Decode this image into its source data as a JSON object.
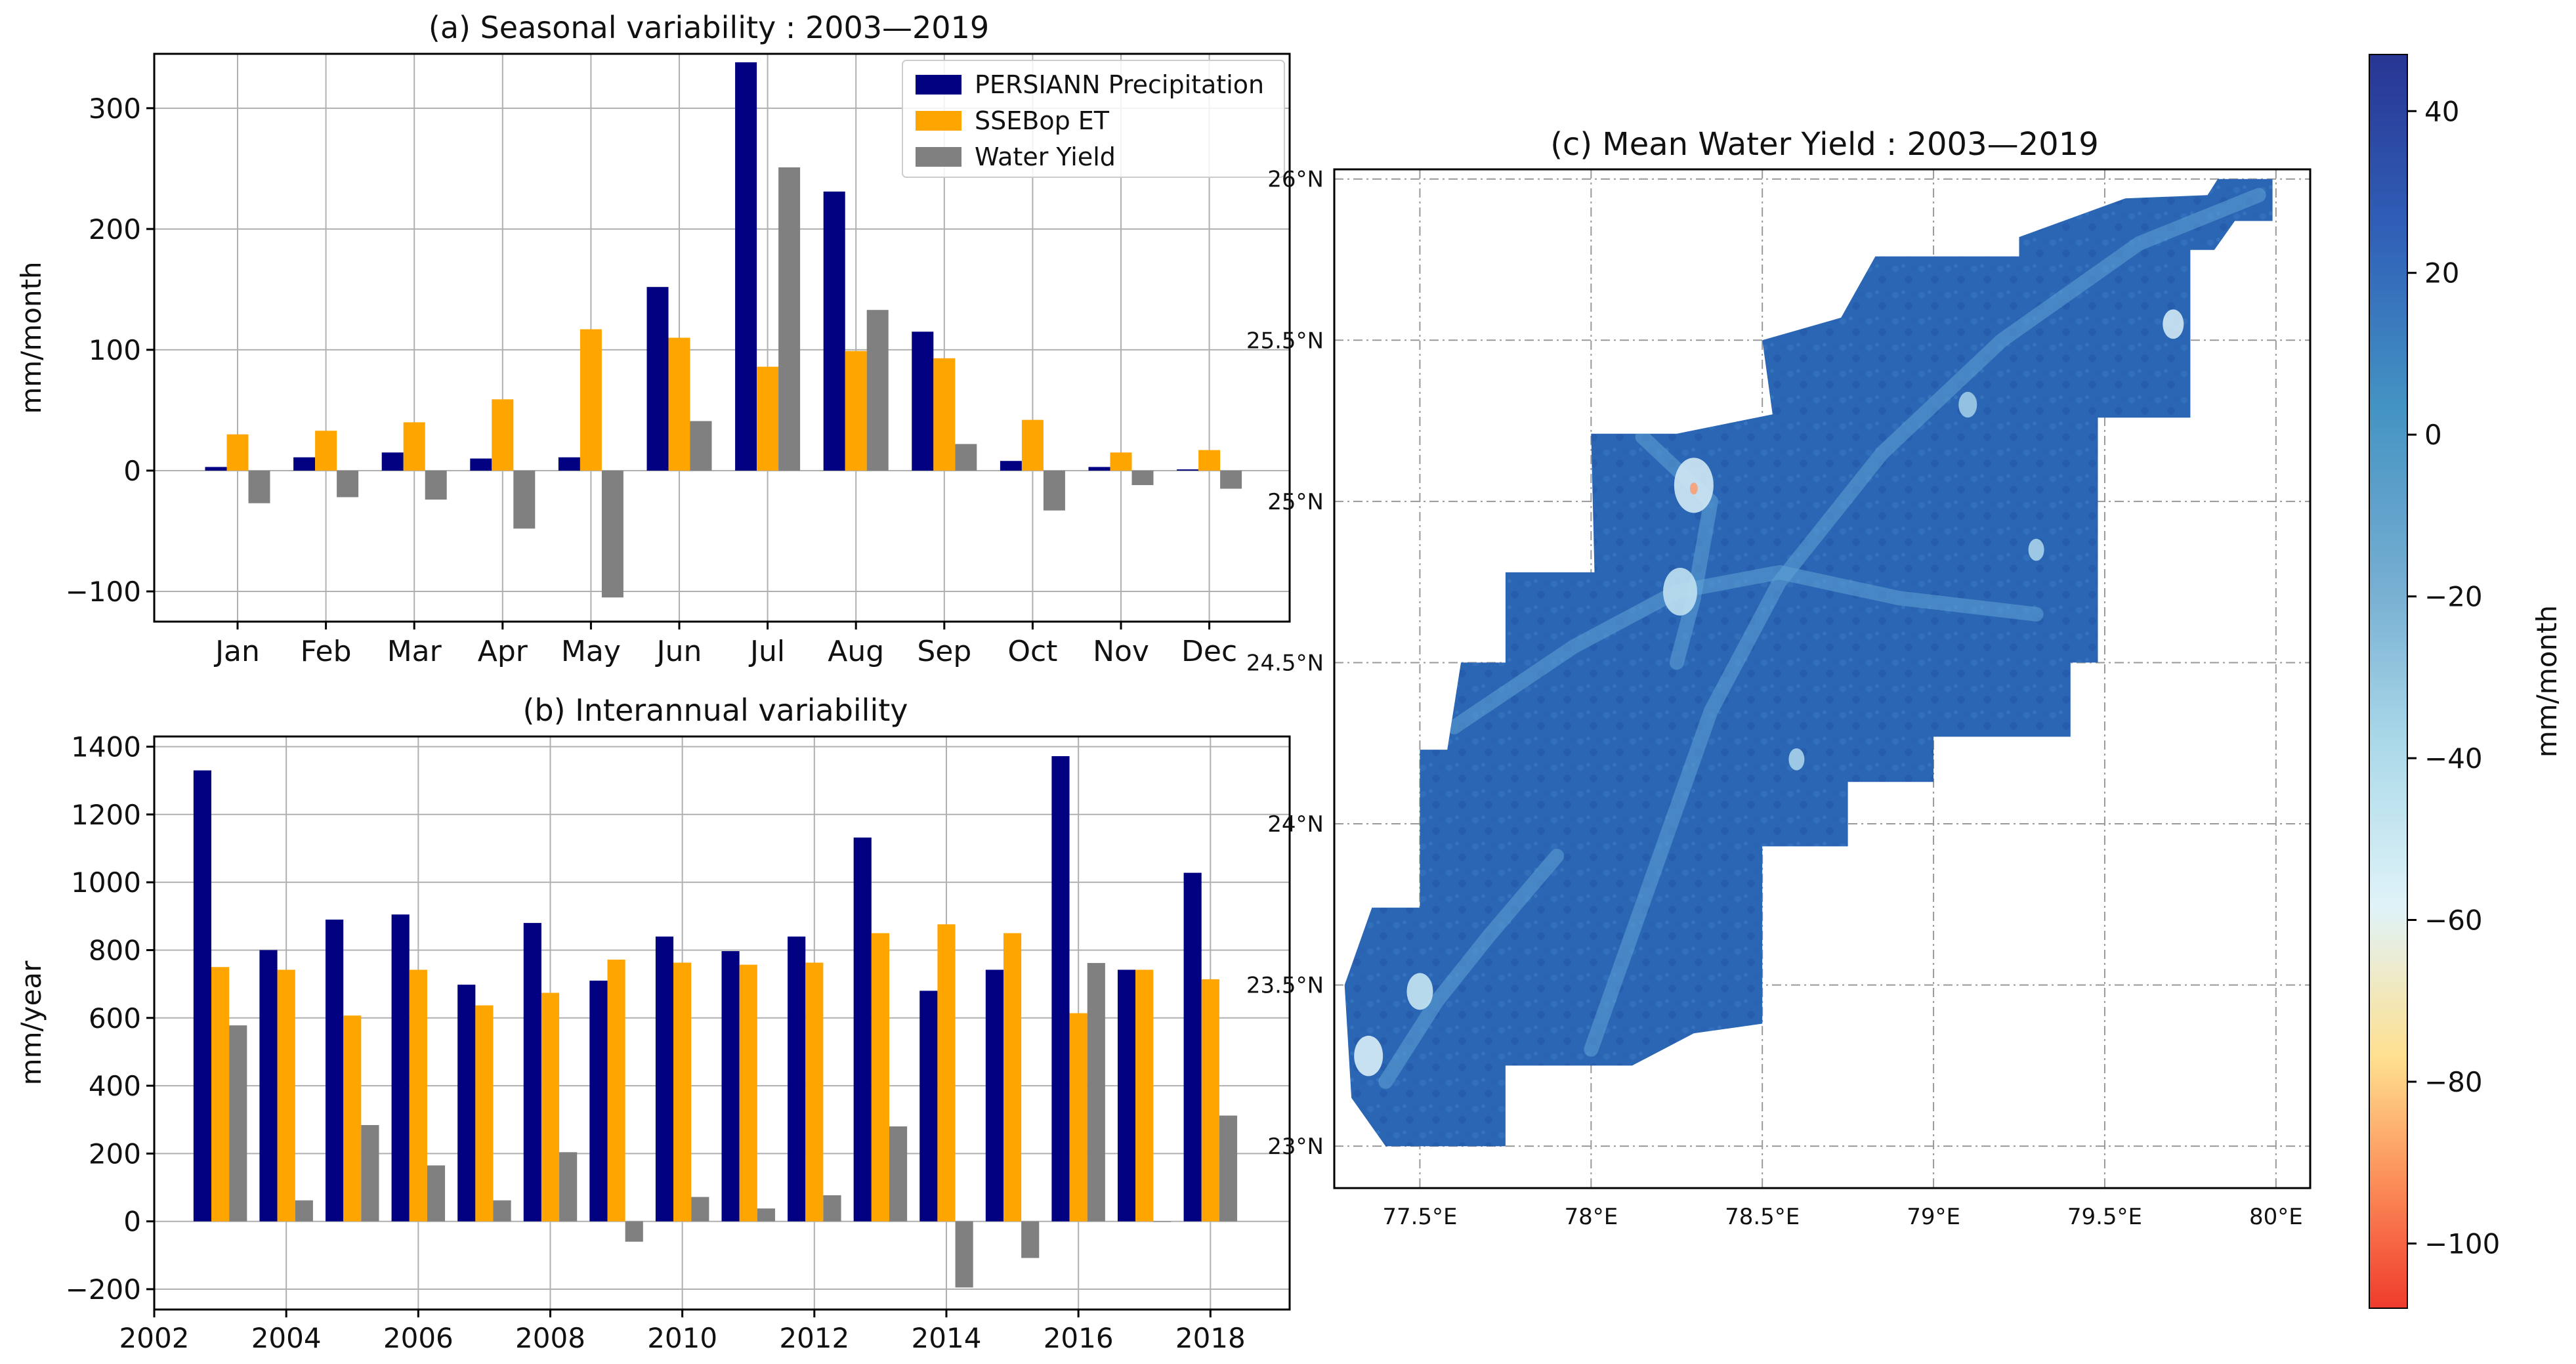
{
  "colors": {
    "precipitation": "#000080",
    "et": "#FFA500",
    "water_yield": "#808080",
    "grid": "#b0b0b0",
    "axis": "#000000"
  },
  "chart_data": [
    {
      "id": "a",
      "type": "bar",
      "title": "(a) Seasonal variability : 2003—2019",
      "xlabel": "",
      "ylabel": "mm/month",
      "ylim": [
        -125,
        345
      ],
      "yticks": [
        -100,
        0,
        100,
        200,
        300
      ],
      "ytick_labels": [
        "−100",
        "0",
        "100",
        "200",
        "300"
      ],
      "categories": [
        "Jan",
        "Feb",
        "Mar",
        "Apr",
        "May",
        "Jun",
        "Jul",
        "Aug",
        "Sep",
        "Oct",
        "Nov",
        "Dec"
      ],
      "grid": true,
      "legend": "top-right",
      "series": [
        {
          "name": "PERSIANN Precipitation",
          "color": "#000080",
          "values": [
            3,
            11,
            15,
            10,
            11,
            152,
            338,
            231,
            115,
            8,
            3,
            1
          ]
        },
        {
          "name": "SSEBop ET",
          "color": "#FFA500",
          "values": [
            30,
            33,
            40,
            59,
            117,
            110,
            86,
            99,
            93,
            42,
            15,
            17
          ]
        },
        {
          "name": "Water Yield",
          "color": "#808080",
          "values": [
            -27,
            -22,
            -24,
            -48,
            -105,
            41,
            251,
            133,
            22,
            -33,
            -12,
            -15
          ]
        }
      ]
    },
    {
      "id": "b",
      "type": "bar",
      "title": "(b) Interannual variability",
      "xlabel": "",
      "ylabel": "mm/year",
      "xlim": [
        2002,
        2019.2
      ],
      "ylim": [
        -260,
        1430
      ],
      "xticks": [
        2002,
        2004,
        2006,
        2008,
        2010,
        2012,
        2014,
        2016,
        2018
      ],
      "yticks": [
        -200,
        0,
        200,
        400,
        600,
        800,
        1000,
        1200,
        1400
      ],
      "ytick_labels": [
        "−200",
        "0",
        "200",
        "400",
        "600",
        "800",
        "1000",
        "1200",
        "1400"
      ],
      "x": [
        2003,
        2004,
        2005,
        2006,
        2007,
        2008,
        2009,
        2010,
        2011,
        2012,
        2013,
        2014,
        2015,
        2016,
        2017,
        2018
      ],
      "grid": true,
      "series": [
        {
          "name": "PERSIANN Precipitation",
          "color": "#000080",
          "values": [
            1330,
            800,
            890,
            905,
            698,
            880,
            710,
            840,
            797,
            840,
            1132,
            680,
            742,
            1372,
            742,
            1028
          ]
        },
        {
          "name": "SSEBop ET",
          "color": "#FFA500",
          "values": [
            750,
            742,
            607,
            742,
            637,
            674,
            772,
            763,
            757,
            763,
            850,
            876,
            850,
            614,
            742,
            714
          ]
        },
        {
          "name": "Water Yield",
          "color": "#808080",
          "values": [
            578,
            62,
            284,
            165,
            62,
            204,
            -60,
            72,
            38,
            77,
            280,
            -195,
            -108,
            762,
            0,
            312
          ]
        }
      ]
    },
    {
      "id": "c",
      "type": "heatmap",
      "title": "(c) Mean Water Yield : 2003—2019",
      "xlim": [
        77.25,
        80.1
      ],
      "ylim": [
        22.87,
        26.03
      ],
      "xtick_labels": [
        "77.5°E",
        "78°E",
        "78.5°E",
        "79°E",
        "79.5°E",
        "80°E"
      ],
      "xtick_values": [
        77.5,
        78.0,
        78.5,
        79.0,
        79.5,
        80.0
      ],
      "ytick_labels": [
        "23°N",
        "23.5°N",
        "24°N",
        "24.5°N",
        "25°N",
        "25.5°N",
        "26°N"
      ],
      "ytick_values": [
        23.0,
        23.5,
        24.0,
        24.5,
        25.0,
        25.5,
        26.0
      ],
      "grid": true,
      "typical_value_range": [
        0,
        30
      ],
      "region_outline_lonlat": [
        [
          79.99,
          26.0
        ],
        [
          79.99,
          25.87
        ],
        [
          79.88,
          25.87
        ],
        [
          79.82,
          25.78
        ],
        [
          79.75,
          25.78
        ],
        [
          79.75,
          25.26
        ],
        [
          79.48,
          25.26
        ],
        [
          79.48,
          24.5
        ],
        [
          79.4,
          24.5
        ],
        [
          79.4,
          24.27
        ],
        [
          79.0,
          24.27
        ],
        [
          79.0,
          24.13
        ],
        [
          78.75,
          24.13
        ],
        [
          78.75,
          23.93
        ],
        [
          78.5,
          23.93
        ],
        [
          78.5,
          23.38
        ],
        [
          78.3,
          23.35
        ],
        [
          78.12,
          23.25
        ],
        [
          77.75,
          23.25
        ],
        [
          77.75,
          23.0
        ],
        [
          77.4,
          23.0
        ],
        [
          77.3,
          23.15
        ],
        [
          77.28,
          23.5
        ],
        [
          77.36,
          23.74
        ],
        [
          77.5,
          23.74
        ],
        [
          77.5,
          24.23
        ],
        [
          77.58,
          24.23
        ],
        [
          77.62,
          24.5
        ],
        [
          77.75,
          24.5
        ],
        [
          77.75,
          24.78
        ],
        [
          78.01,
          24.78
        ],
        [
          78.0,
          25.21
        ],
        [
          78.25,
          25.21
        ],
        [
          78.53,
          25.27
        ],
        [
          78.5,
          25.5
        ],
        [
          78.73,
          25.57
        ],
        [
          78.83,
          25.76
        ],
        [
          79.25,
          25.76
        ],
        [
          79.25,
          25.82
        ],
        [
          79.56,
          25.94
        ],
        [
          79.8,
          25.95
        ],
        [
          79.83,
          26.0
        ]
      ]
    }
  ],
  "colorbar": {
    "label": "mm/month",
    "min": -108,
    "max": 47,
    "ticks": [
      40,
      20,
      0,
      -20,
      -40,
      -60,
      -80,
      -100
    ],
    "tick_labels": [
      "40",
      "20",
      "0",
      "−20",
      "−40",
      "−60",
      "−80",
      "−100"
    ],
    "colormap_stops": [
      [
        0.0,
        "#ef3b2c"
      ],
      [
        0.1,
        "#fc8d59"
      ],
      [
        0.2,
        "#fee090"
      ],
      [
        0.32,
        "#e0f3f8"
      ],
      [
        0.45,
        "#abd9e9"
      ],
      [
        0.58,
        "#74add1"
      ],
      [
        0.72,
        "#4393c3"
      ],
      [
        0.86,
        "#3060b8"
      ],
      [
        1.0,
        "#283593"
      ]
    ]
  }
}
